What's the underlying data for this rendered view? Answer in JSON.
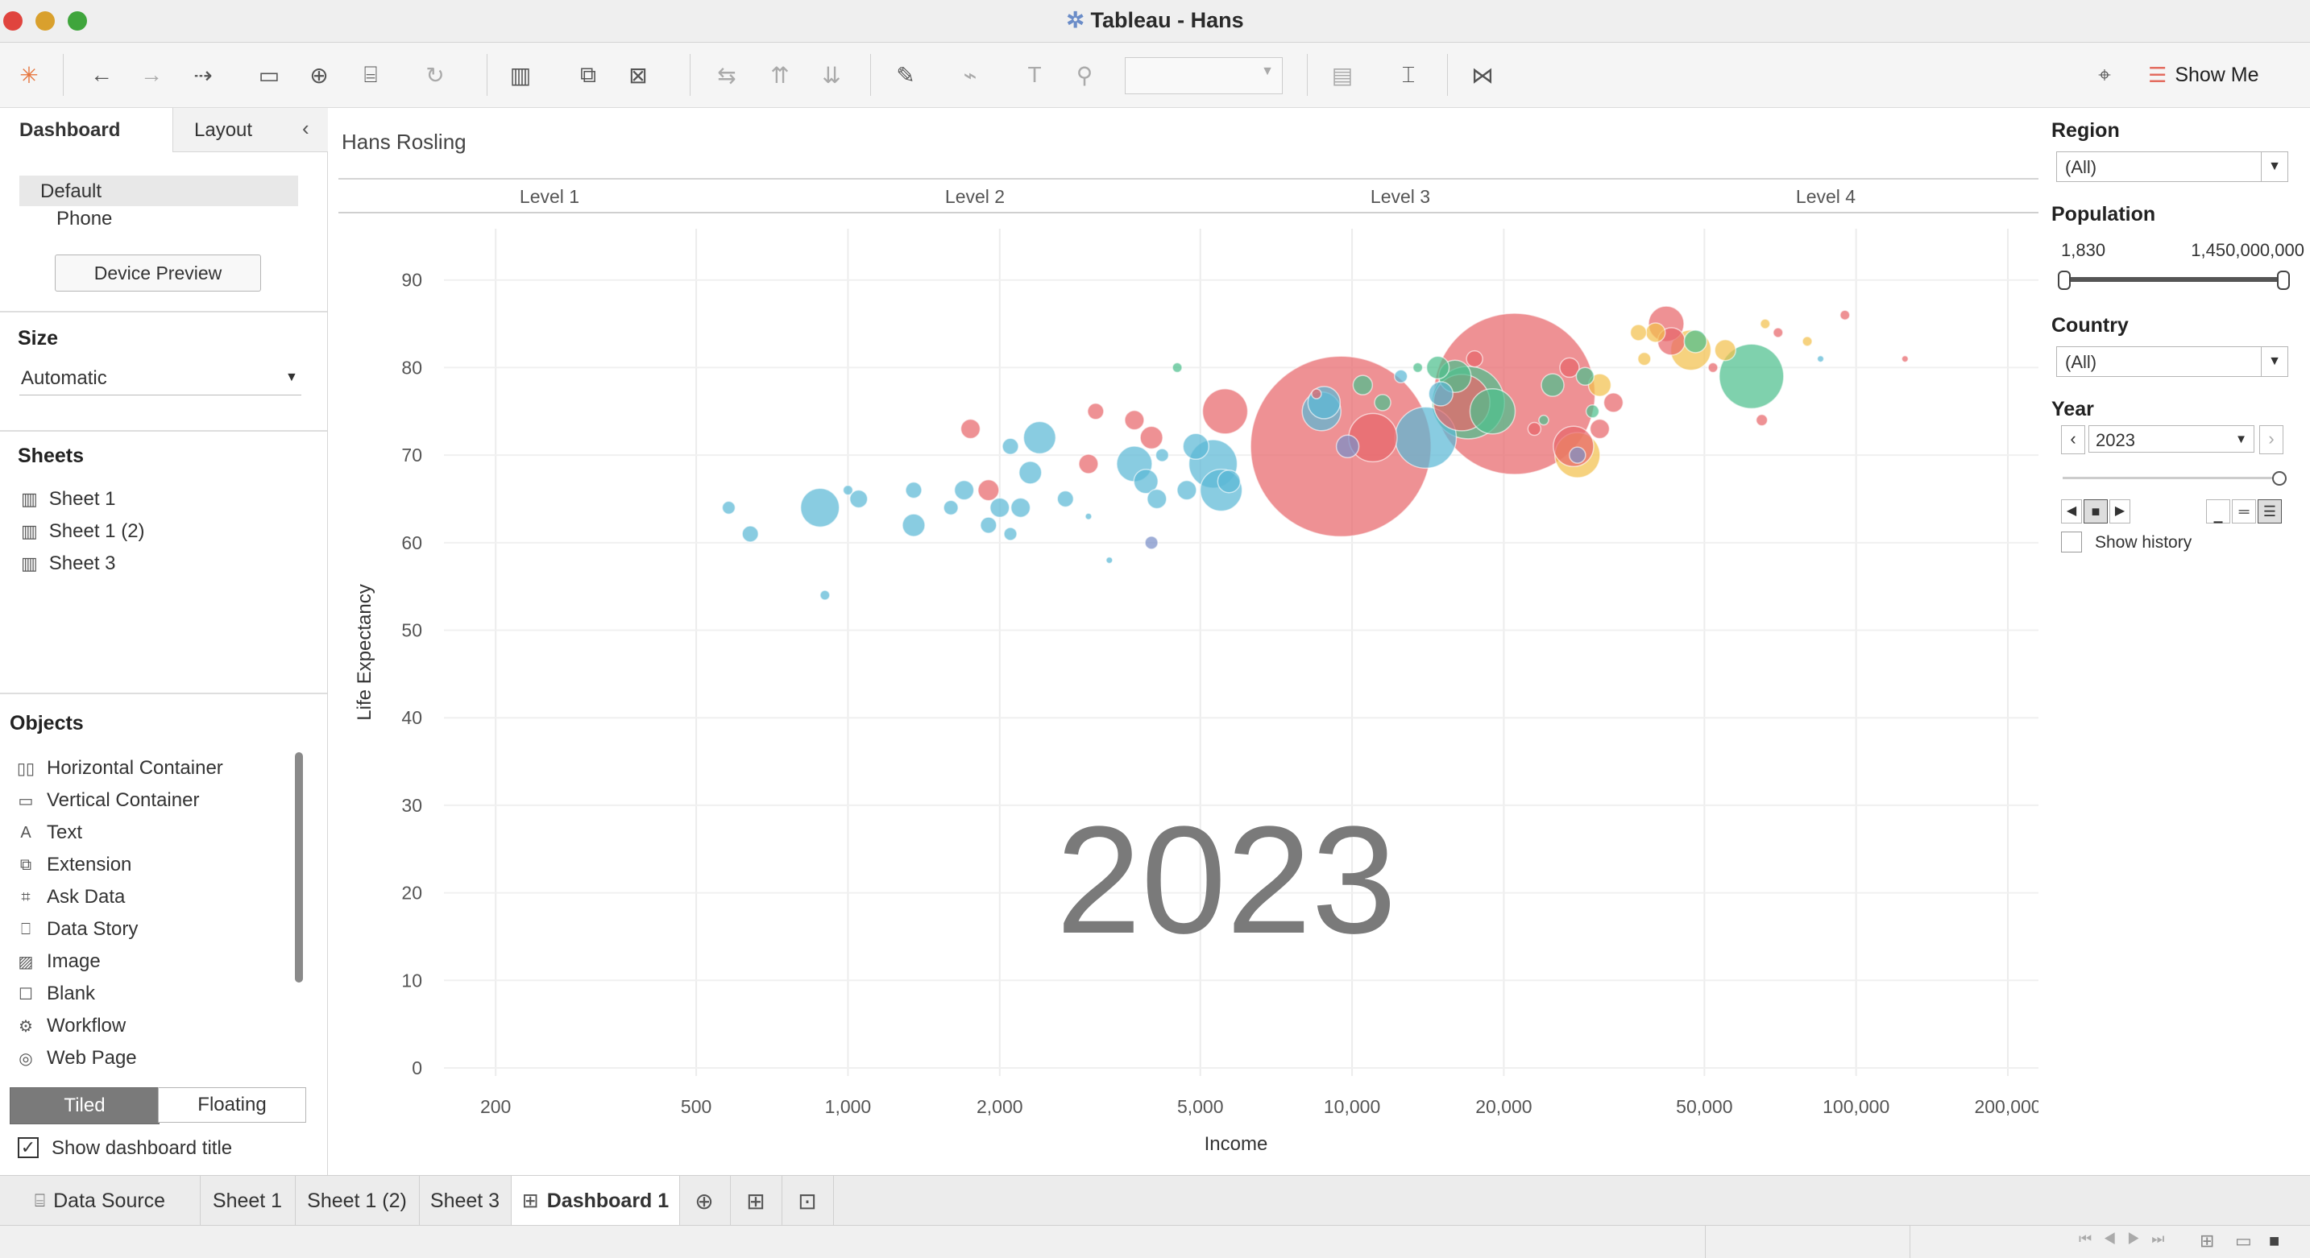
{
  "window": {
    "title": "Tableau - Hans"
  },
  "toolbar": {
    "show_me_label": "Show Me"
  },
  "left_panel": {
    "tabs": [
      "Dashboard",
      "Layout"
    ],
    "devices": [
      "Default",
      "Phone"
    ],
    "device_preview_label": "Device Preview",
    "size_heading": "Size",
    "size_value": "Automatic",
    "sheets_heading": "Sheets",
    "sheets": [
      "Sheet 1",
      "Sheet 1 (2)",
      "Sheet 3"
    ],
    "objects_heading": "Objects",
    "objects": [
      {
        "label": "Horizontal Container",
        "icon": "horizontal-container-icon"
      },
      {
        "label": "Vertical Container",
        "icon": "vertical-container-icon"
      },
      {
        "label": "Text",
        "icon": "text-icon"
      },
      {
        "label": "Extension",
        "icon": "extension-icon"
      },
      {
        "label": "Ask Data",
        "icon": "ask-data-icon"
      },
      {
        "label": "Data Story",
        "icon": "data-story-icon"
      },
      {
        "label": "Image",
        "icon": "image-icon"
      },
      {
        "label": "Blank",
        "icon": "blank-icon"
      },
      {
        "label": "Workflow",
        "icon": "workflow-icon"
      },
      {
        "label": "Web Page",
        "icon": "web-page-icon"
      }
    ],
    "tiled_label": "Tiled",
    "floating_label": "Floating",
    "show_title_label": "Show dashboard title",
    "show_title_checked": true
  },
  "dashboard": {
    "title": "Hans Rosling",
    "levels": [
      "Level 1",
      "Level 2",
      "Level 3",
      "Level 4"
    ],
    "year_watermark": "2023"
  },
  "filters": {
    "region_label": "Region",
    "region_value": "(All)",
    "population_label": "Population",
    "population_min": "1,830",
    "population_max": "1,450,000,000",
    "country_label": "Country",
    "country_value": "(All)",
    "year_label": "Year",
    "year_value": "2023",
    "show_history_label": "Show history"
  },
  "bottom_tabs": [
    "Data Source",
    "Sheet 1",
    "Sheet 1 (2)",
    "Sheet 3",
    "Dashboard 1"
  ],
  "active_tab": "Dashboard 1",
  "colors": {
    "asia": "#e8676b",
    "africa": "#5bb8d5",
    "europe": "#f2c14e",
    "americas": "#4dbf8e",
    "other": "#7a8fc7"
  },
  "chart_data": {
    "type": "scatter",
    "title": "",
    "xlabel": "Income",
    "ylabel": "Life Expectancy",
    "x_scale": "log",
    "xlim": [
      170,
      230000
    ],
    "ylim": [
      0,
      92
    ],
    "x_ticks": [
      200,
      500,
      1000,
      2000,
      5000,
      10000,
      20000,
      50000,
      100000,
      200000
    ],
    "x_tick_labels": [
      "200",
      "500",
      "1,000",
      "2,000",
      "5,000",
      "10,000",
      "20,000",
      "50,000",
      "100,000",
      "200,000"
    ],
    "y_ticks": [
      0,
      10,
      20,
      30,
      40,
      50,
      60,
      70,
      80,
      90
    ],
    "grid": true,
    "points": [
      {
        "x": 9500,
        "y": 71,
        "r": 112,
        "c": "asia"
      },
      {
        "x": 21000,
        "y": 77,
        "r": 100,
        "c": "asia"
      },
      {
        "x": 16500,
        "y": 76,
        "r": 35,
        "c": "asia"
      },
      {
        "x": 11000,
        "y": 72,
        "r": 30,
        "c": "asia"
      },
      {
        "x": 14000,
        "y": 72,
        "r": 38,
        "c": "africa"
      },
      {
        "x": 17000,
        "y": 76,
        "r": 45,
        "c": "americas"
      },
      {
        "x": 19000,
        "y": 75,
        "r": 28,
        "c": "americas"
      },
      {
        "x": 16000,
        "y": 79,
        "r": 20,
        "c": "americas"
      },
      {
        "x": 15000,
        "y": 77,
        "r": 15,
        "c": "africa"
      },
      {
        "x": 28000,
        "y": 70,
        "r": 28,
        "c": "europe"
      },
      {
        "x": 27500,
        "y": 71,
        "r": 25,
        "c": "asia"
      },
      {
        "x": 28000,
        "y": 70,
        "r": 10,
        "c": "other"
      },
      {
        "x": 33000,
        "y": 76,
        "r": 12,
        "c": "asia"
      },
      {
        "x": 31000,
        "y": 78,
        "r": 14,
        "c": "europe"
      },
      {
        "x": 62000,
        "y": 79,
        "r": 40,
        "c": "americas"
      },
      {
        "x": 42000,
        "y": 85,
        "r": 22,
        "c": "asia"
      },
      {
        "x": 47000,
        "y": 82,
        "r": 25,
        "c": "europe"
      },
      {
        "x": 43000,
        "y": 83,
        "r": 17,
        "c": "asia"
      },
      {
        "x": 48000,
        "y": 83,
        "r": 14,
        "c": "americas"
      },
      {
        "x": 40000,
        "y": 84,
        "r": 12,
        "c": "europe"
      },
      {
        "x": 55000,
        "y": 82,
        "r": 13,
        "c": "europe"
      },
      {
        "x": 37000,
        "y": 84,
        "r": 10,
        "c": "europe"
      },
      {
        "x": 38000,
        "y": 81,
        "r": 8,
        "c": "europe"
      },
      {
        "x": 66000,
        "y": 85,
        "r": 6,
        "c": "europe"
      },
      {
        "x": 70000,
        "y": 84,
        "r": 6,
        "c": "asia"
      },
      {
        "x": 80000,
        "y": 83,
        "r": 6,
        "c": "europe"
      },
      {
        "x": 95000,
        "y": 86,
        "r": 6,
        "c": "asia"
      },
      {
        "x": 125000,
        "y": 81,
        "r": 4,
        "c": "asia"
      },
      {
        "x": 65000,
        "y": 74,
        "r": 7,
        "c": "asia"
      },
      {
        "x": 5300,
        "y": 69,
        "r": 30,
        "c": "africa"
      },
      {
        "x": 5500,
        "y": 66,
        "r": 26,
        "c": "africa"
      },
      {
        "x": 5700,
        "y": 67,
        "r": 14,
        "c": "africa"
      },
      {
        "x": 5600,
        "y": 75,
        "r": 28,
        "c": "asia"
      },
      {
        "x": 4900,
        "y": 71,
        "r": 16,
        "c": "africa"
      },
      {
        "x": 4700,
        "y": 66,
        "r": 12,
        "c": "africa"
      },
      {
        "x": 3700,
        "y": 69,
        "r": 22,
        "c": "africa"
      },
      {
        "x": 3900,
        "y": 67,
        "r": 15,
        "c": "africa"
      },
      {
        "x": 4100,
        "y": 65,
        "r": 12,
        "c": "africa"
      },
      {
        "x": 3700,
        "y": 74,
        "r": 12,
        "c": "asia"
      },
      {
        "x": 3100,
        "y": 75,
        "r": 10,
        "c": "asia"
      },
      {
        "x": 3000,
        "y": 69,
        "r": 12,
        "c": "asia"
      },
      {
        "x": 2400,
        "y": 72,
        "r": 20,
        "c": "africa"
      },
      {
        "x": 2300,
        "y": 68,
        "r": 14,
        "c": "africa"
      },
      {
        "x": 2100,
        "y": 71,
        "r": 10,
        "c": "africa"
      },
      {
        "x": 2000,
        "y": 64,
        "r": 12,
        "c": "africa"
      },
      {
        "x": 2700,
        "y": 65,
        "r": 10,
        "c": "africa"
      },
      {
        "x": 2200,
        "y": 64,
        "r": 12,
        "c": "africa"
      },
      {
        "x": 1900,
        "y": 66,
        "r": 13,
        "c": "asia"
      },
      {
        "x": 1750,
        "y": 73,
        "r": 12,
        "c": "asia"
      },
      {
        "x": 1700,
        "y": 66,
        "r": 12,
        "c": "africa"
      },
      {
        "x": 1600,
        "y": 64,
        "r": 9,
        "c": "africa"
      },
      {
        "x": 1900,
        "y": 62,
        "r": 10,
        "c": "africa"
      },
      {
        "x": 2100,
        "y": 61,
        "r": 8,
        "c": "africa"
      },
      {
        "x": 1350,
        "y": 66,
        "r": 10,
        "c": "africa"
      },
      {
        "x": 1350,
        "y": 62,
        "r": 14,
        "c": "africa"
      },
      {
        "x": 1050,
        "y": 65,
        "r": 11,
        "c": "africa"
      },
      {
        "x": 880,
        "y": 64,
        "r": 24,
        "c": "africa"
      },
      {
        "x": 640,
        "y": 61,
        "r": 10,
        "c": "africa"
      },
      {
        "x": 580,
        "y": 64,
        "r": 8,
        "c": "africa"
      },
      {
        "x": 900,
        "y": 54,
        "r": 6,
        "c": "africa"
      },
      {
        "x": 1000,
        "y": 66,
        "r": 6,
        "c": "africa"
      },
      {
        "x": 4000,
        "y": 60,
        "r": 8,
        "c": "other"
      },
      {
        "x": 4500,
        "y": 80,
        "r": 6,
        "c": "americas"
      },
      {
        "x": 4200,
        "y": 70,
        "r": 8,
        "c": "africa"
      },
      {
        "x": 3300,
        "y": 58,
        "r": 4,
        "c": "africa"
      },
      {
        "x": 3000,
        "y": 63,
        "r": 4,
        "c": "africa"
      },
      {
        "x": 4000,
        "y": 72,
        "r": 14,
        "c": "asia"
      },
      {
        "x": 8500,
        "y": 77,
        "r": 6,
        "c": "asia"
      },
      {
        "x": 8800,
        "y": 76,
        "r": 20,
        "c": "africa"
      },
      {
        "x": 8700,
        "y": 75,
        "r": 24,
        "c": "africa"
      },
      {
        "x": 9800,
        "y": 71,
        "r": 14,
        "c": "other"
      },
      {
        "x": 11500,
        "y": 76,
        "r": 10,
        "c": "americas"
      },
      {
        "x": 10500,
        "y": 78,
        "r": 12,
        "c": "americas"
      },
      {
        "x": 12500,
        "y": 79,
        "r": 8,
        "c": "africa"
      },
      {
        "x": 13500,
        "y": 80,
        "r": 6,
        "c": "americas"
      },
      {
        "x": 14800,
        "y": 80,
        "r": 14,
        "c": "americas"
      },
      {
        "x": 17500,
        "y": 81,
        "r": 10,
        "c": "asia"
      },
      {
        "x": 25000,
        "y": 78,
        "r": 14,
        "c": "americas"
      },
      {
        "x": 27000,
        "y": 80,
        "r": 12,
        "c": "asia"
      },
      {
        "x": 29000,
        "y": 79,
        "r": 11,
        "c": "americas"
      },
      {
        "x": 23000,
        "y": 73,
        "r": 8,
        "c": "asia"
      },
      {
        "x": 24000,
        "y": 74,
        "r": 6,
        "c": "americas"
      },
      {
        "x": 31000,
        "y": 73,
        "r": 12,
        "c": "asia"
      },
      {
        "x": 30000,
        "y": 75,
        "r": 8,
        "c": "americas"
      },
      {
        "x": 52000,
        "y": 80,
        "r": 6,
        "c": "asia"
      },
      {
        "x": 85000,
        "y": 81,
        "r": 4,
        "c": "africa"
      }
    ]
  }
}
